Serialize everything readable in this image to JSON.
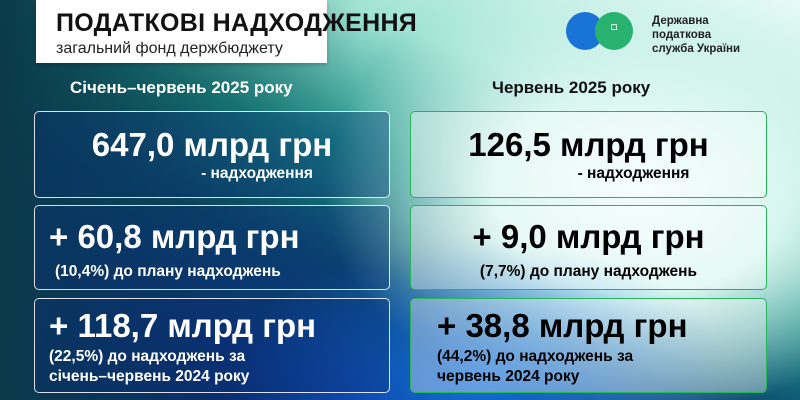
{
  "header": {
    "title": "ПОДАТКОВІ НАДХОДЖЕННЯ",
    "subtitle": "загальний фонд держбюджету"
  },
  "logo": {
    "org_lines": [
      "Державна",
      "податкова",
      "служба України"
    ],
    "icon": "tryzub-emblem",
    "colors": [
      "#1a73d6",
      "#27b36f"
    ]
  },
  "left": {
    "title": "Січень–червень 2025 року",
    "cards": [
      {
        "value": "647,0 млрд грн",
        "note": "- надходження"
      },
      {
        "value": "+ 60,8 млрд грн",
        "note": "(10,4%) до плану надходжень"
      },
      {
        "value": "+ 118,7 млрд грн",
        "note": "(22,5%) до надходжень за",
        "note2": "січень–червень 2024 року"
      }
    ]
  },
  "right": {
    "title": "Червень 2025 року",
    "cards": [
      {
        "value": "126,5 млрд грн",
        "note": "- надходження"
      },
      {
        "value": "+ 9,0 млрд грн",
        "note": "(7,7%) до плану надходжень"
      },
      {
        "value": "+ 38,8 млрд грн",
        "note": "(44,2%) до надходжень за",
        "note2": "червень 2024 року"
      }
    ]
  }
}
